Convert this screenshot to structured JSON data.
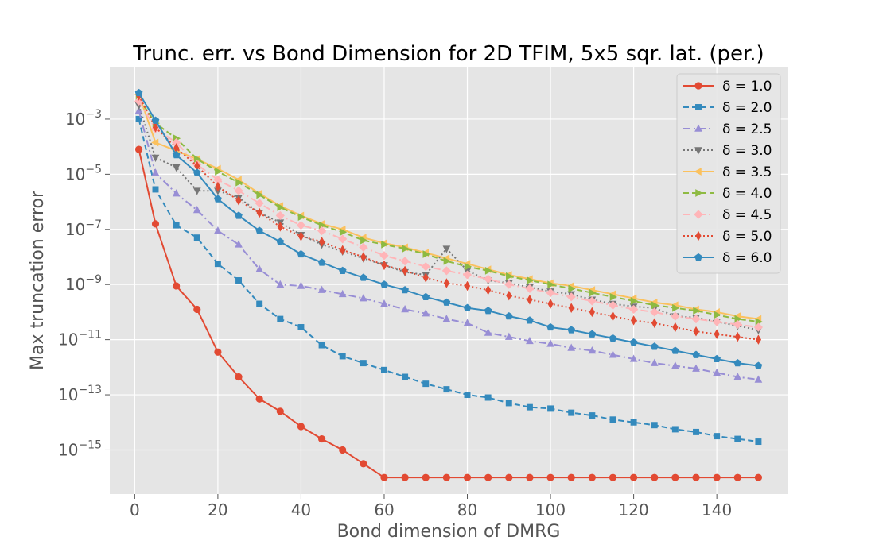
{
  "chart_data": {
    "type": "line",
    "title": "Trunc. err. vs Bond Dimension for 2D TFIM, 5x5 sqr. lat. (per.)",
    "xlabel": "Bond dimension of DMRG",
    "ylabel": "Max truncation error",
    "yscale": "log",
    "xlim": [
      -6,
      157
    ],
    "ylim_exp": [
      -16.6,
      -1.1
    ],
    "xticks": [
      0,
      20,
      40,
      60,
      80,
      100,
      120,
      140
    ],
    "xtick_labels": [
      "0",
      "20",
      "40",
      "60",
      "80",
      "100",
      "120",
      "140"
    ],
    "yticks_exp": [
      -3,
      -5,
      -7,
      -9,
      -11,
      -13,
      -15
    ],
    "ytick_bases": [
      "10",
      "10",
      "10",
      "10",
      "10",
      "10",
      "10"
    ],
    "ytick_exps": [
      "−3",
      "−5",
      "−7",
      "−9",
      "−11",
      "−13",
      "−15"
    ],
    "grid": true,
    "legend_position": "top-right",
    "x": [
      1,
      5,
      10,
      15,
      20,
      25,
      30,
      35,
      40,
      45,
      50,
      55,
      60,
      65,
      70,
      75,
      80,
      85,
      90,
      95,
      100,
      105,
      110,
      115,
      120,
      125,
      130,
      135,
      140,
      145,
      150
    ],
    "series": [
      {
        "name": "δ = 1.0",
        "color": "#E24A33",
        "dash": "",
        "marker": "circle",
        "log10_values": [
          -4.1,
          -6.8,
          -9.05,
          -9.9,
          -11.45,
          -12.35,
          -13.15,
          -13.6,
          -14.15,
          -14.6,
          -15.0,
          -15.5,
          -16.0,
          -16.0,
          -16.0,
          -16.0,
          -16.0,
          -16.0,
          -16.0,
          -16.0,
          -16.0,
          -16.0,
          -16.0,
          -16.0,
          -16.0,
          -16.0,
          -16.0,
          -16.0,
          -16.0,
          -16.0,
          -16.0
        ]
      },
      {
        "name": "δ = 2.0",
        "color": "#348ABD",
        "dash": "7,4",
        "marker": "square",
        "log10_values": [
          -3.0,
          -5.55,
          -6.85,
          -7.3,
          -8.25,
          -8.85,
          -9.7,
          -10.25,
          -10.55,
          -11.2,
          -11.6,
          -11.85,
          -12.1,
          -12.35,
          -12.6,
          -12.8,
          -13.0,
          -13.1,
          -13.3,
          -13.45,
          -13.5,
          -13.65,
          -13.75,
          -13.9,
          -14.0,
          -14.1,
          -14.25,
          -14.35,
          -14.5,
          -14.6,
          -14.7
        ]
      },
      {
        "name": "δ = 2.5",
        "color": "#988ED5",
        "dash": "9,4,2,4",
        "marker": "triangle",
        "log10_values": [
          -2.7,
          -4.95,
          -5.7,
          -6.3,
          -7.05,
          -7.55,
          -8.45,
          -9.0,
          -9.05,
          -9.2,
          -9.35,
          -9.5,
          -9.7,
          -9.9,
          -10.05,
          -10.25,
          -10.4,
          -10.75,
          -10.9,
          -11.05,
          -11.15,
          -11.3,
          -11.4,
          -11.55,
          -11.7,
          -11.85,
          -11.95,
          -12.05,
          -12.2,
          -12.35,
          -12.45
        ]
      },
      {
        "name": "δ = 3.0",
        "color": "#777777",
        "dash": "2,3",
        "marker": "triangle-down",
        "log10_values": [
          -2.5,
          -4.4,
          -4.75,
          -5.6,
          -5.6,
          -5.85,
          -6.4,
          -6.75,
          -7.2,
          -7.55,
          -7.8,
          -8.05,
          -8.3,
          -8.55,
          -8.65,
          -7.7,
          -8.5,
          -8.85,
          -8.95,
          -9.1,
          -9.25,
          -9.35,
          -9.55,
          -9.7,
          -9.8,
          -9.85,
          -10.15,
          -10.2,
          -10.35,
          -10.5,
          -10.65
        ]
      },
      {
        "name": "δ = 3.5",
        "color": "#FBC15E",
        "dash": "",
        "marker": "tri-left",
        "log10_values": [
          -2.1,
          -3.85,
          -4.15,
          -4.45,
          -4.8,
          -5.2,
          -5.7,
          -6.15,
          -6.5,
          -6.8,
          -7.0,
          -7.3,
          -7.5,
          -7.65,
          -7.85,
          -8.05,
          -8.25,
          -8.45,
          -8.65,
          -8.8,
          -8.95,
          -9.05,
          -9.2,
          -9.35,
          -9.5,
          -9.65,
          -9.75,
          -9.9,
          -10.0,
          -10.15,
          -10.25
        ]
      },
      {
        "name": "δ = 4.0",
        "color": "#8EBA42",
        "dash": "7,4",
        "marker": "tri-right",
        "log10_values": [
          -2.25,
          -3.15,
          -3.7,
          -4.45,
          -4.9,
          -5.3,
          -5.75,
          -6.2,
          -6.55,
          -6.85,
          -7.1,
          -7.4,
          -7.55,
          -7.7,
          -7.9,
          -8.15,
          -8.35,
          -8.5,
          -8.7,
          -8.85,
          -9.0,
          -9.15,
          -9.3,
          -9.45,
          -9.6,
          -9.75,
          -9.85,
          -9.95,
          -10.1,
          -10.25,
          -10.35
        ]
      },
      {
        "name": "δ = 4.5",
        "color": "#FFB5B8",
        "dash": "9,4,2,4",
        "marker": "diamond",
        "log10_values": [
          -2.35,
          -3.35,
          -3.85,
          -4.65,
          -5.2,
          -5.6,
          -6.05,
          -6.5,
          -6.85,
          -7.05,
          -7.35,
          -7.65,
          -7.95,
          -8.15,
          -8.35,
          -8.5,
          -8.65,
          -8.8,
          -9.0,
          -9.15,
          -9.3,
          -9.45,
          -9.6,
          -9.75,
          -9.9,
          -10.0,
          -10.15,
          -10.25,
          -10.35,
          -10.45,
          -10.55
        ]
      },
      {
        "name": "δ = 5.0",
        "color": "#E24A33",
        "dash": "2,3",
        "marker": "thin-diamond",
        "log10_values": [
          -2.15,
          -3.3,
          -4.05,
          -4.7,
          -5.45,
          -5.95,
          -6.4,
          -6.9,
          -7.25,
          -7.45,
          -7.75,
          -8.0,
          -8.3,
          -8.5,
          -8.75,
          -8.95,
          -9.05,
          -9.2,
          -9.4,
          -9.55,
          -9.7,
          -9.85,
          -10.0,
          -10.15,
          -10.3,
          -10.4,
          -10.55,
          -10.7,
          -10.8,
          -10.9,
          -11.0
        ]
      },
      {
        "name": "δ = 6.0",
        "color": "#348ABD",
        "dash": "",
        "marker": "pentagon",
        "log10_values": [
          -2.05,
          -3.05,
          -4.3,
          -4.95,
          -5.9,
          -6.5,
          -7.05,
          -7.45,
          -7.9,
          -8.2,
          -8.5,
          -8.75,
          -9.0,
          -9.2,
          -9.45,
          -9.65,
          -9.85,
          -9.95,
          -10.15,
          -10.3,
          -10.55,
          -10.65,
          -10.8,
          -10.95,
          -11.1,
          -11.25,
          -11.4,
          -11.55,
          -11.7,
          -11.85,
          -11.95
        ]
      }
    ]
  }
}
